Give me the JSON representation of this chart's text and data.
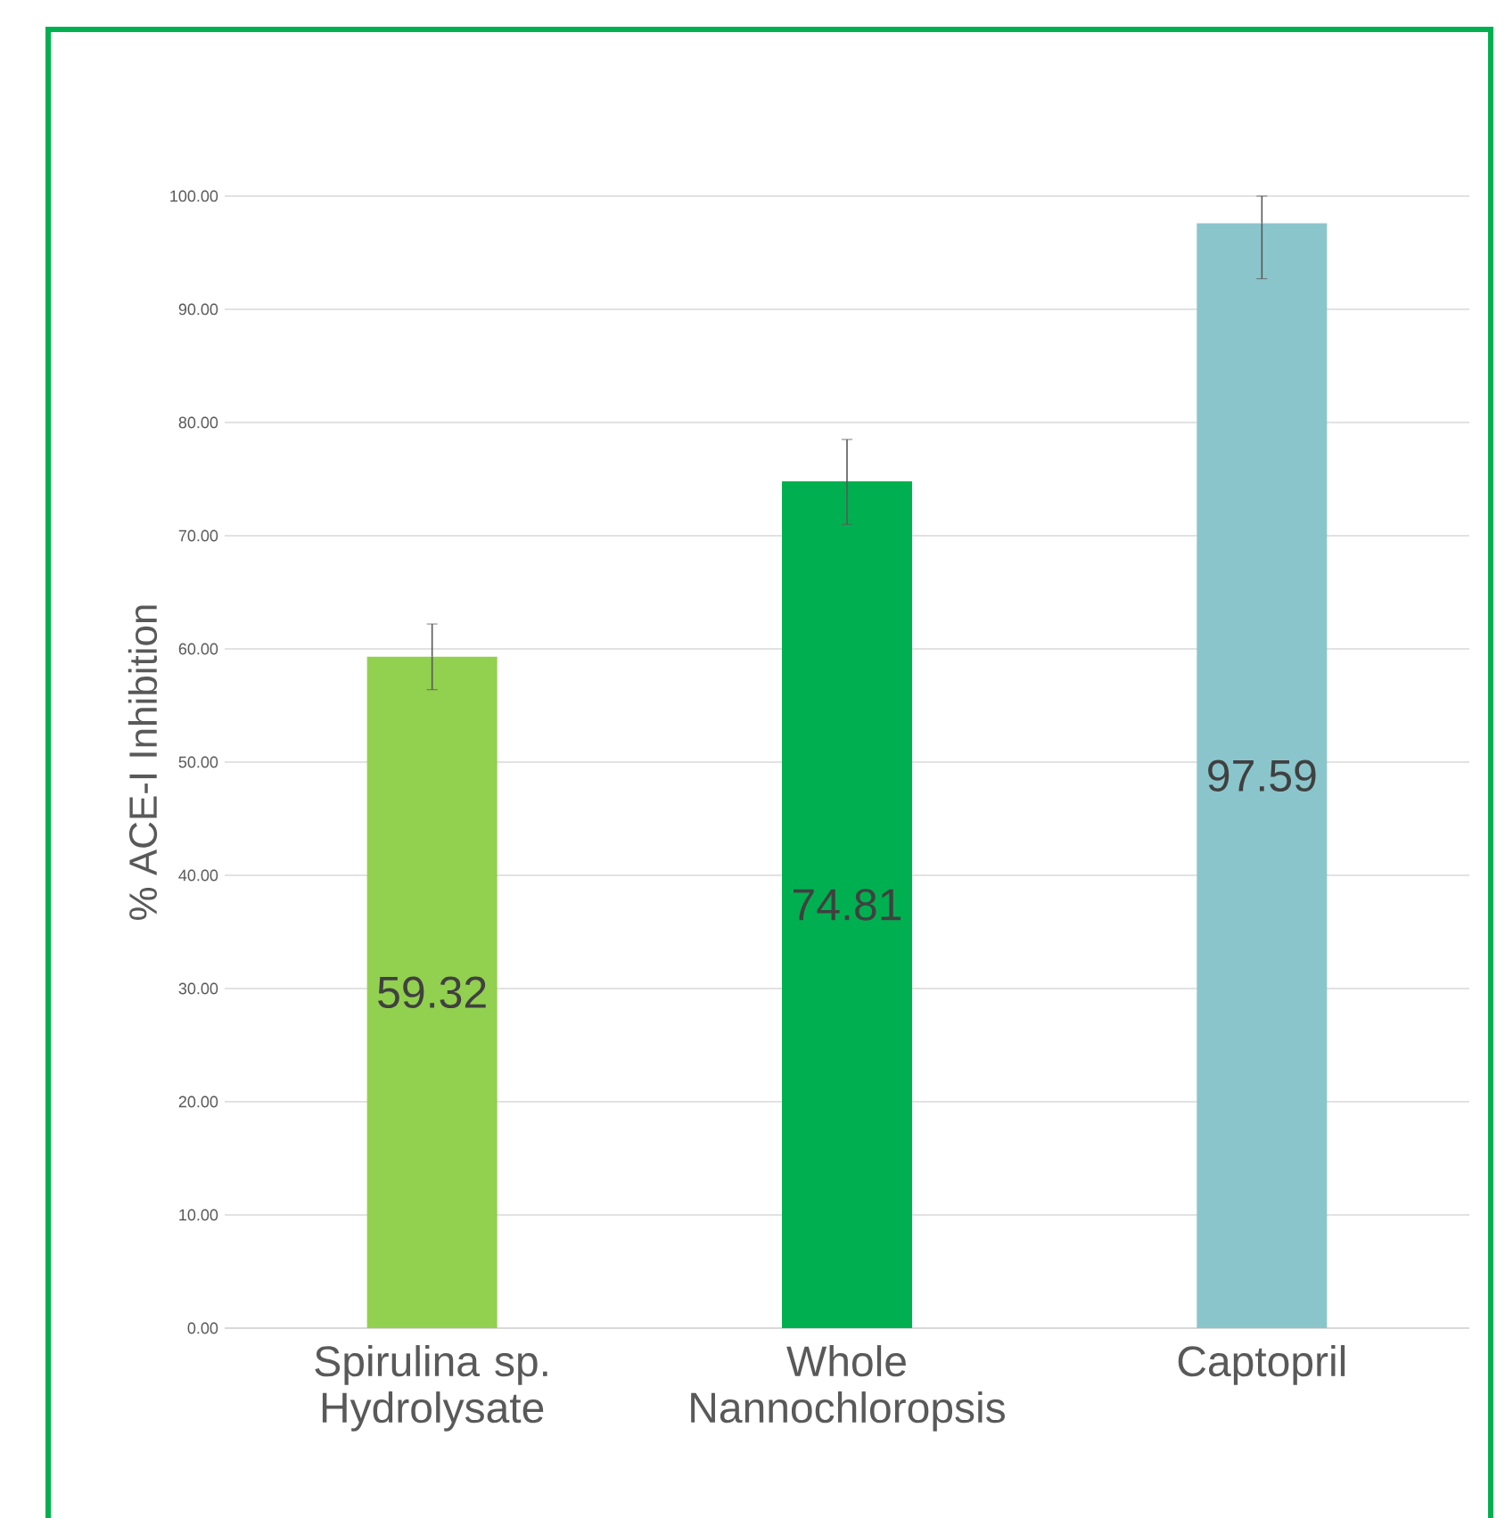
{
  "chart_data": {
    "type": "bar",
    "ylabel": "% ACE-I Inhibition",
    "categories": [
      "Spirulina sp. Hydrolysate",
      "Whole Nannochloropsis",
      "Captopril"
    ],
    "values": [
      59.32,
      74.81,
      97.59
    ],
    "colors": [
      "#92d050",
      "#00b050",
      "#8bc5cc"
    ],
    "errors": [
      [
        56.4,
        62.2
      ],
      [
        71.0,
        78.5
      ],
      [
        92.7,
        100.0
      ]
    ],
    "data_labels": true,
    "ylim": [
      0,
      100
    ],
    "yticks": [
      {
        "value": 0,
        "label": "0.00"
      },
      {
        "value": 10,
        "label": "10.00"
      },
      {
        "value": 20,
        "label": "20.00"
      },
      {
        "value": 30,
        "label": "30.00"
      },
      {
        "value": 40,
        "label": "40.00"
      },
      {
        "value": 50,
        "label": "50.00"
      },
      {
        "value": 60,
        "label": "60.00"
      },
      {
        "value": 70,
        "label": "70.00"
      },
      {
        "value": 80,
        "label": "80.00"
      },
      {
        "value": 90,
        "label": "90.00"
      },
      {
        "value": 100,
        "label": "100.00"
      }
    ],
    "grid": "y"
  }
}
